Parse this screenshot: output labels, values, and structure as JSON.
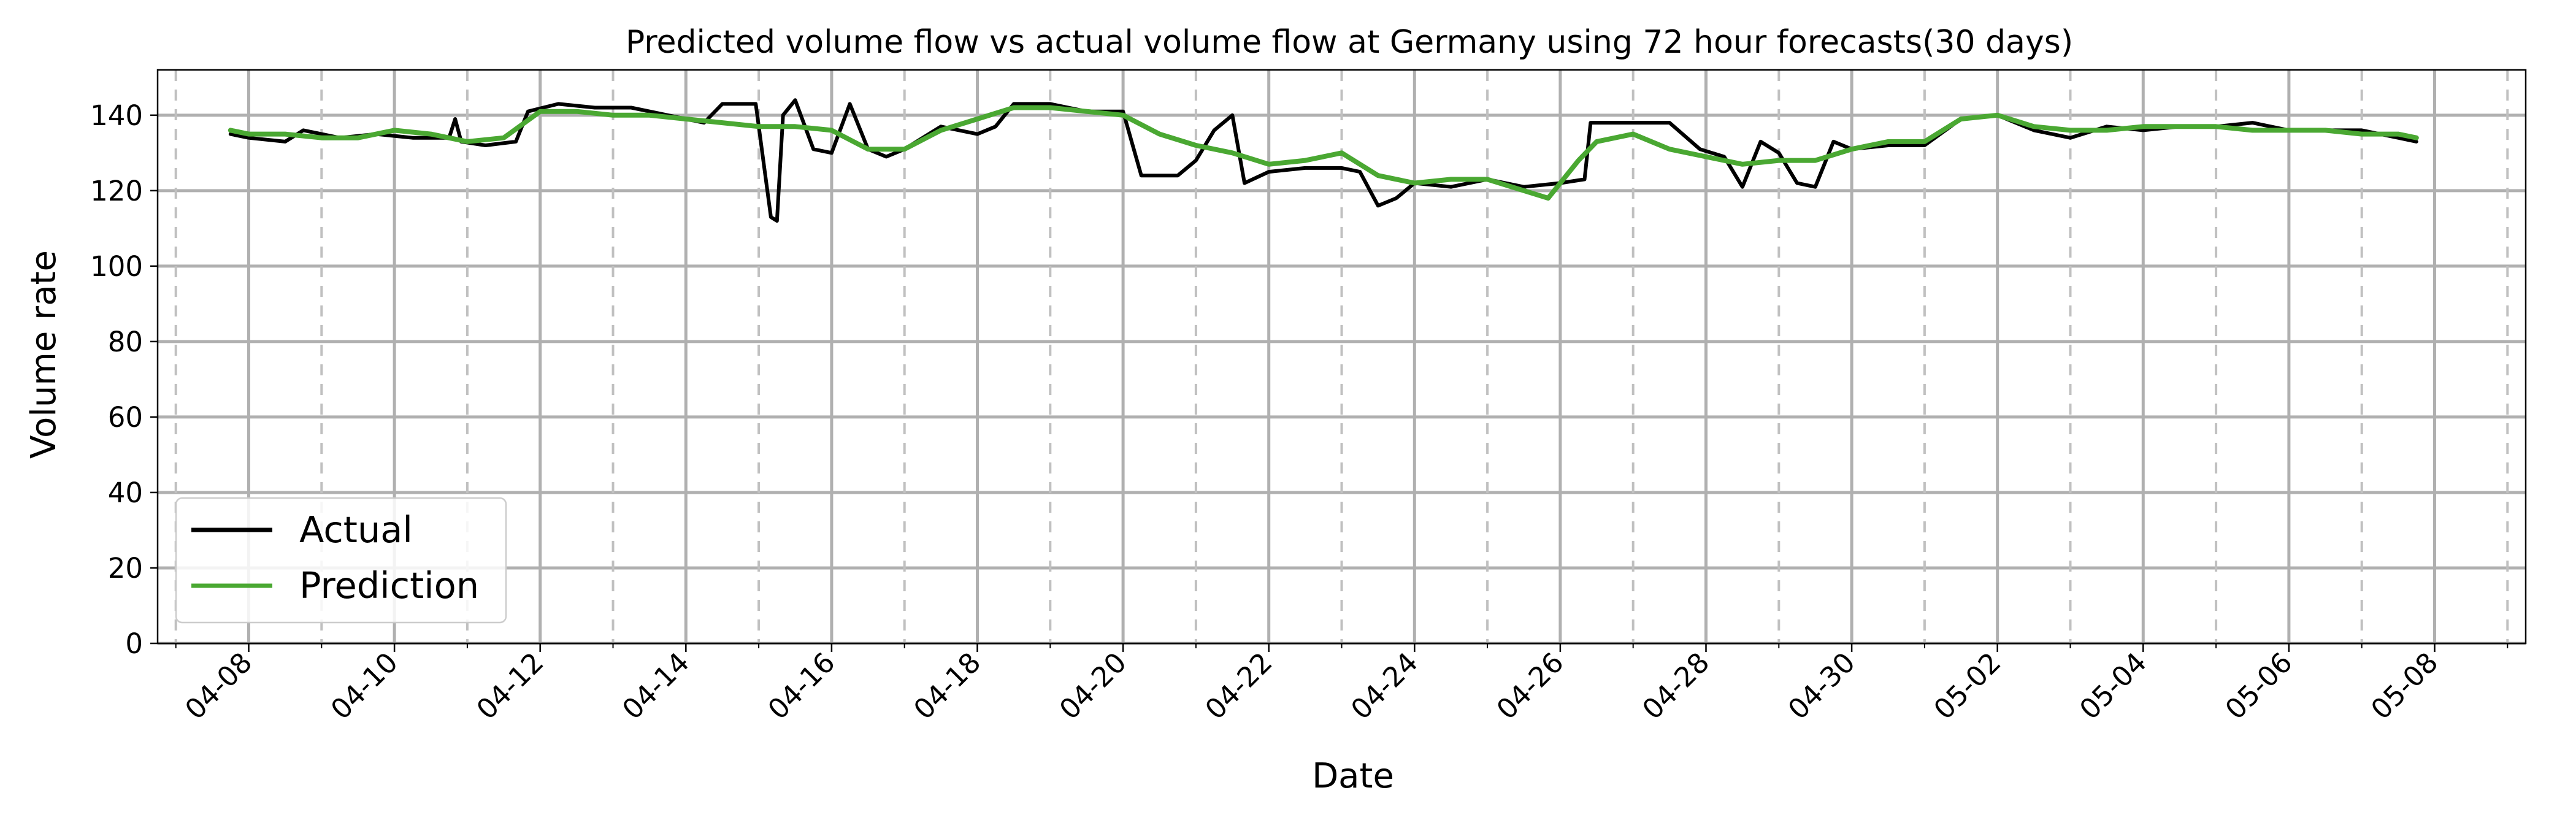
{
  "chart_data": {
    "type": "line",
    "title": "Predicted volume flow vs actual volume flow at Germany using 72 hour forecasts(30 days)",
    "xlabel": "Date",
    "ylabel": "Volume rate",
    "xlim": [
      "2024-04-06T18:00",
      "2024-05-09T06:00"
    ],
    "ylim": [
      0,
      152
    ],
    "grid": true,
    "legend_position": "lower-left",
    "x_tick_labels": [
      "04-08",
      "04-10",
      "04-12",
      "04-14",
      "04-16",
      "04-18",
      "04-20",
      "04-22",
      "04-24",
      "04-26",
      "04-28",
      "04-30",
      "05-02",
      "05-04",
      "05-06",
      "05-08"
    ],
    "x_tick_dates": [
      "2024-04-08",
      "2024-04-10",
      "2024-04-12",
      "2024-04-14",
      "2024-04-16",
      "2024-04-18",
      "2024-04-20",
      "2024-04-22",
      "2024-04-24",
      "2024-04-26",
      "2024-04-28",
      "2024-04-30",
      "2024-05-02",
      "2024-05-04",
      "2024-05-06",
      "2024-05-08"
    ],
    "x_minor_dates": [
      "2024-04-07",
      "2024-04-09",
      "2024-04-11",
      "2024-04-13",
      "2024-04-15",
      "2024-04-17",
      "2024-04-19",
      "2024-04-21",
      "2024-04-23",
      "2024-04-25",
      "2024-04-27",
      "2024-04-29",
      "2024-05-01",
      "2024-05-03",
      "2024-05-05",
      "2024-05-07",
      "2024-05-09"
    ],
    "y_ticks": [
      0,
      20,
      40,
      60,
      80,
      100,
      120,
      140
    ],
    "series": [
      {
        "name": "Actual",
        "color": "#000000",
        "points": [
          [
            "2024-04-07T18:00",
            135
          ],
          [
            "2024-04-08T00:00",
            134
          ],
          [
            "2024-04-08T12:00",
            133
          ],
          [
            "2024-04-08T18:00",
            136
          ],
          [
            "2024-04-09T06:00",
            134
          ],
          [
            "2024-04-09T18:00",
            135
          ],
          [
            "2024-04-10T06:00",
            134
          ],
          [
            "2024-04-10T18:00",
            134
          ],
          [
            "2024-04-10T20:00",
            139
          ],
          [
            "2024-04-10T22:00",
            133
          ],
          [
            "2024-04-11T06:00",
            132
          ],
          [
            "2024-04-11T16:00",
            133
          ],
          [
            "2024-04-11T20:00",
            141
          ],
          [
            "2024-04-12T06:00",
            143
          ],
          [
            "2024-04-12T18:00",
            142
          ],
          [
            "2024-04-13T06:00",
            142
          ],
          [
            "2024-04-13T18:00",
            140
          ],
          [
            "2024-04-14T06:00",
            138
          ],
          [
            "2024-04-14T12:00",
            143
          ],
          [
            "2024-04-14T23:00",
            143
          ],
          [
            "2024-04-15T02:00",
            125
          ],
          [
            "2024-04-15T04:00",
            113
          ],
          [
            "2024-04-15T06:00",
            112
          ],
          [
            "2024-04-15T08:00",
            140
          ],
          [
            "2024-04-15T12:00",
            144
          ],
          [
            "2024-04-15T18:00",
            131
          ],
          [
            "2024-04-16T00:00",
            130
          ],
          [
            "2024-04-16T06:00",
            143
          ],
          [
            "2024-04-16T12:00",
            131
          ],
          [
            "2024-04-16T18:00",
            129
          ],
          [
            "2024-04-17T00:00",
            131
          ],
          [
            "2024-04-17T12:00",
            137
          ],
          [
            "2024-04-18T00:00",
            135
          ],
          [
            "2024-04-18T06:00",
            137
          ],
          [
            "2024-04-18T12:00",
            143
          ],
          [
            "2024-04-19T00:00",
            143
          ],
          [
            "2024-04-19T12:00",
            141
          ],
          [
            "2024-04-20T00:00",
            141
          ],
          [
            "2024-04-20T06:00",
            124
          ],
          [
            "2024-04-20T18:00",
            124
          ],
          [
            "2024-04-21T00:00",
            128
          ],
          [
            "2024-04-21T06:00",
            136
          ],
          [
            "2024-04-21T12:00",
            140
          ],
          [
            "2024-04-21T16:00",
            122
          ],
          [
            "2024-04-22T00:00",
            125
          ],
          [
            "2024-04-22T12:00",
            126
          ],
          [
            "2024-04-23T00:00",
            126
          ],
          [
            "2024-04-23T06:00",
            125
          ],
          [
            "2024-04-23T12:00",
            116
          ],
          [
            "2024-04-23T18:00",
            118
          ],
          [
            "2024-04-24T00:00",
            122
          ],
          [
            "2024-04-24T12:00",
            121
          ],
          [
            "2024-04-25T00:00",
            123
          ],
          [
            "2024-04-25T12:00",
            121
          ],
          [
            "2024-04-26T00:00",
            122
          ],
          [
            "2024-04-26T08:00",
            123
          ],
          [
            "2024-04-26T10:00",
            138
          ],
          [
            "2024-04-27T00:00",
            138
          ],
          [
            "2024-04-27T12:00",
            138
          ],
          [
            "2024-04-27T22:00",
            131
          ],
          [
            "2024-04-28T06:00",
            129
          ],
          [
            "2024-04-28T12:00",
            121
          ],
          [
            "2024-04-28T18:00",
            133
          ],
          [
            "2024-04-29T00:00",
            130
          ],
          [
            "2024-04-29T06:00",
            122
          ],
          [
            "2024-04-29T12:00",
            121
          ],
          [
            "2024-04-29T18:00",
            133
          ],
          [
            "2024-04-30T00:00",
            131
          ],
          [
            "2024-04-30T12:00",
            132
          ],
          [
            "2024-05-01T00:00",
            132
          ],
          [
            "2024-05-01T12:00",
            139
          ],
          [
            "2024-05-02T00:00",
            140
          ],
          [
            "2024-05-02T12:00",
            136
          ],
          [
            "2024-05-03T00:00",
            134
          ],
          [
            "2024-05-03T12:00",
            137
          ],
          [
            "2024-05-04T00:00",
            136
          ],
          [
            "2024-05-04T12:00",
            137
          ],
          [
            "2024-05-05T00:00",
            137
          ],
          [
            "2024-05-05T12:00",
            138
          ],
          [
            "2024-05-06T00:00",
            136
          ],
          [
            "2024-05-06T12:00",
            136
          ],
          [
            "2024-05-07T00:00",
            136
          ],
          [
            "2024-05-07T12:00",
            134
          ],
          [
            "2024-05-07T18:00",
            133
          ]
        ]
      },
      {
        "name": "Prediction",
        "color": "#4aa832",
        "points": [
          [
            "2024-04-07T18:00",
            136
          ],
          [
            "2024-04-08T00:00",
            135
          ],
          [
            "2024-04-08T12:00",
            135
          ],
          [
            "2024-04-09T00:00",
            134
          ],
          [
            "2024-04-09T12:00",
            134
          ],
          [
            "2024-04-10T00:00",
            136
          ],
          [
            "2024-04-10T12:00",
            135
          ],
          [
            "2024-04-11T00:00",
            133
          ],
          [
            "2024-04-11T12:00",
            134
          ],
          [
            "2024-04-12T00:00",
            141
          ],
          [
            "2024-04-12T12:00",
            141
          ],
          [
            "2024-04-13T00:00",
            140
          ],
          [
            "2024-04-13T12:00",
            140
          ],
          [
            "2024-04-14T00:00",
            139
          ],
          [
            "2024-04-14T12:00",
            138
          ],
          [
            "2024-04-15T00:00",
            137
          ],
          [
            "2024-04-15T12:00",
            137
          ],
          [
            "2024-04-16T00:00",
            136
          ],
          [
            "2024-04-16T12:00",
            131
          ],
          [
            "2024-04-17T00:00",
            131
          ],
          [
            "2024-04-17T12:00",
            136
          ],
          [
            "2024-04-18T00:00",
            139
          ],
          [
            "2024-04-18T12:00",
            142
          ],
          [
            "2024-04-19T00:00",
            142
          ],
          [
            "2024-04-19T12:00",
            141
          ],
          [
            "2024-04-20T00:00",
            140
          ],
          [
            "2024-04-20T12:00",
            135
          ],
          [
            "2024-04-21T00:00",
            132
          ],
          [
            "2024-04-21T12:00",
            130
          ],
          [
            "2024-04-22T00:00",
            127
          ],
          [
            "2024-04-22T12:00",
            128
          ],
          [
            "2024-04-23T00:00",
            130
          ],
          [
            "2024-04-23T12:00",
            124
          ],
          [
            "2024-04-24T00:00",
            122
          ],
          [
            "2024-04-24T12:00",
            123
          ],
          [
            "2024-04-25T00:00",
            123
          ],
          [
            "2024-04-25T12:00",
            120
          ],
          [
            "2024-04-25T20:00",
            118
          ],
          [
            "2024-04-26T06:00",
            128
          ],
          [
            "2024-04-26T12:00",
            133
          ],
          [
            "2024-04-27T00:00",
            135
          ],
          [
            "2024-04-27T12:00",
            131
          ],
          [
            "2024-04-28T00:00",
            129
          ],
          [
            "2024-04-28T12:00",
            127
          ],
          [
            "2024-04-29T00:00",
            128
          ],
          [
            "2024-04-29T12:00",
            128
          ],
          [
            "2024-04-30T00:00",
            131
          ],
          [
            "2024-04-30T12:00",
            133
          ],
          [
            "2024-05-01T00:00",
            133
          ],
          [
            "2024-05-01T12:00",
            139
          ],
          [
            "2024-05-02T00:00",
            140
          ],
          [
            "2024-05-02T12:00",
            137
          ],
          [
            "2024-05-03T00:00",
            136
          ],
          [
            "2024-05-03T12:00",
            136
          ],
          [
            "2024-05-04T00:00",
            137
          ],
          [
            "2024-05-04T12:00",
            137
          ],
          [
            "2024-05-05T00:00",
            137
          ],
          [
            "2024-05-05T12:00",
            136
          ],
          [
            "2024-05-06T00:00",
            136
          ],
          [
            "2024-05-06T12:00",
            136
          ],
          [
            "2024-05-07T00:00",
            135
          ],
          [
            "2024-05-07T12:00",
            135
          ],
          [
            "2024-05-07T18:00",
            134
          ]
        ]
      }
    ]
  }
}
